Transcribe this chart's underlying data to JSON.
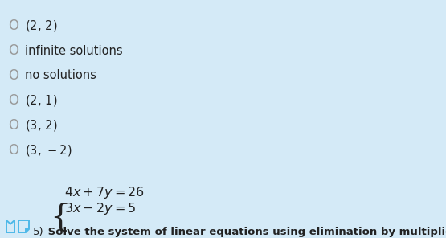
{
  "background_color": "#d4eaf7",
  "title_number": "5)",
  "title_text": " Solve the system of linear equations using elimination by multiplication.",
  "eq1": "$3x - 2y = 5$",
  "eq2": "$4x + 7y = 26$",
  "choices": [
    "$(3,\\,-2)$",
    "$(3,\\,2)$",
    "$(2,\\,1)$",
    "no solutions",
    "infinite solutions",
    "$(2,\\,2)$"
  ],
  "title_fontsize": 9.5,
  "eq_fontsize": 11.5,
  "choice_fontsize": 10.5,
  "text_color": "#222222",
  "icon_color": "#4db8e8",
  "circle_color": "#999999"
}
